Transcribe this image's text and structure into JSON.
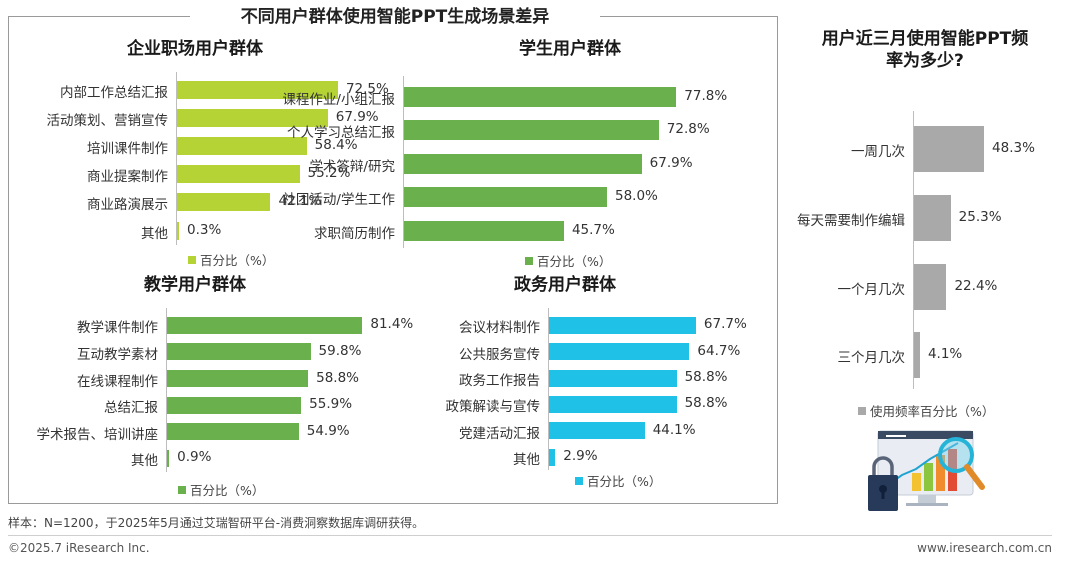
{
  "main_title": "不同用户群体使用智能PPT生成场景差异",
  "right_title_line1": "用户近三月使用智能PPT频",
  "right_title_line2": "率为多少?",
  "note": "样本：N=1200，于2025年5月通过艾瑞智研平台-消费洞察数据库调研获得。",
  "footer_left": "©2025.7 iResearch Inc.",
  "footer_right": "www.iresearch.com.cn",
  "colors": {
    "enterprise": "#b5d334",
    "student": "#6ab04c",
    "teaching": "#6ab04c",
    "government": "#1fc2e6",
    "frequency": "#a9a9a9"
  },
  "chart_data": [
    {
      "id": "enterprise",
      "type": "bar",
      "title": "企业职场用户群体",
      "categories": [
        "内部工作总结汇报",
        "活动策划、营销宣传",
        "培训课件制作",
        "商业提案制作",
        "商业路演展示",
        "其他"
      ],
      "values": [
        72.5,
        67.9,
        58.4,
        55.2,
        42.1,
        0.3
      ],
      "value_labels": [
        "72.5%",
        "67.9%",
        "58.4%",
        "55.2%",
        "42.1%",
        "0.3%"
      ],
      "legend": "百分比（%）"
    },
    {
      "id": "student",
      "type": "bar",
      "title": "学生用户群体",
      "categories": [
        "课程作业/小组汇报",
        "个人学习总结汇报",
        "学术答辩/研究",
        "社团活动/学生工作",
        "求职简历制作"
      ],
      "values": [
        77.8,
        72.8,
        67.9,
        58.0,
        45.7
      ],
      "value_labels": [
        "77.8%",
        "72.8%",
        "67.9%",
        "58.0%",
        "45.7%"
      ],
      "legend": "百分比（%）"
    },
    {
      "id": "teaching",
      "type": "bar",
      "title": "教学用户群体",
      "categories": [
        "教学课件制作",
        "互动教学素材",
        "在线课程制作",
        "总结汇报",
        "学术报告、培训讲座",
        "其他"
      ],
      "values": [
        81.4,
        59.8,
        58.8,
        55.9,
        54.9,
        0.9
      ],
      "value_labels": [
        "81.4%",
        "59.8%",
        "58.8%",
        "55.9%",
        "54.9%",
        "0.9%"
      ],
      "legend": "百分比（%）"
    },
    {
      "id": "government",
      "type": "bar",
      "title": "政务用户群体",
      "categories": [
        "会议材料制作",
        "公共服务宣传",
        "政务工作报告",
        "政策解读与宣传",
        "党建活动汇报",
        "其他"
      ],
      "values": [
        67.7,
        64.7,
        58.8,
        58.8,
        44.1,
        2.9
      ],
      "value_labels": [
        "67.7%",
        "64.7%",
        "58.8%",
        "58.8%",
        "44.1%",
        "2.9%"
      ],
      "legend": "百分比（%）"
    },
    {
      "id": "frequency",
      "type": "bar",
      "title": "用户近三月使用智能PPT频率为多少?",
      "categories": [
        "一周几次",
        "每天需要制作编辑",
        "一个月几次",
        "三个月几次"
      ],
      "values": [
        48.3,
        25.3,
        22.4,
        4.1
      ],
      "value_labels": [
        "48.3%",
        "25.3%",
        "22.4%",
        "4.1%"
      ],
      "legend": "使用频率百分比（%）"
    }
  ]
}
